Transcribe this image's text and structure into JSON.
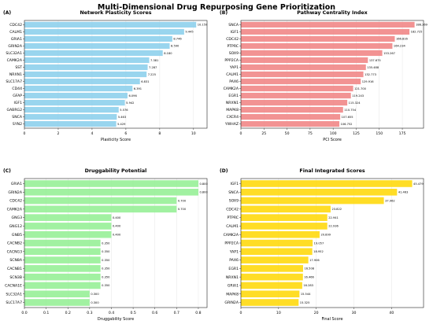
{
  "figure_title": "Multi-Dimensional Drug Repurposing Gene Prioritization",
  "chart_data": [
    {
      "type": "bar",
      "orientation": "horizontal",
      "letter": "(A)",
      "title": "Network Plasticity Scores",
      "xlabel": "Plasticity Score",
      "ylabel": "",
      "color": "#87CEEB",
      "xlim": [
        0,
        10.8
      ],
      "xticks": [
        0,
        2,
        4,
        6,
        8,
        10
      ],
      "categories": [
        "CDC42",
        "CALM1",
        "GRIA1",
        "GRIN2A",
        "SLC32A1",
        "CAMK2A",
        "SST",
        "NRXN1",
        "SLC17A7",
        "CD44",
        "GFAP",
        "IGF1",
        "GABRG2",
        "SNCA",
        "SYN2"
      ],
      "values": [
        10.159,
        9.445,
        8.746,
        8.59,
        8.18,
        7.381,
        7.287,
        7.225,
        6.831,
        6.391,
        6.096,
        5.942,
        5.576,
        5.463,
        5.429
      ],
      "value_labels": [
        "10.159",
        "9.445",
        "8.746",
        "8.590",
        "8.180",
        "7.381",
        "7.287",
        "7.225",
        "6.831",
        "6.391",
        "6.096",
        "5.942",
        "5.576",
        "5.463",
        "5.429"
      ],
      "grid": true
    },
    {
      "type": "bar",
      "orientation": "horizontal",
      "letter": "(B)",
      "title": "Pathway Centrality Index",
      "xlabel": "PCI Score",
      "ylabel": "",
      "color": "#F08080",
      "xlim": [
        0,
        198
      ],
      "xticks": [
        0,
        25,
        50,
        75,
        100,
        125,
        150,
        175
      ],
      "categories": [
        "SNCA",
        "IGF1",
        "CDC42",
        "PTPRC",
        "SOX9",
        "PPP2CA",
        "YAP1",
        "CALM1",
        "PAX6",
        "CAMK2A",
        "EGR1",
        "NRXN1",
        "MAPK8",
        "CXCR4",
        "YWHAZ"
      ],
      "values": [
        188.269,
        182.725,
        166.816,
        164.234,
        153.267,
        137.675,
        135.488,
        132.773,
        129.916,
        121.7,
        119.243,
        115.324,
        110.754,
        107.655,
        106.752
      ],
      "value_labels": [
        "188.269",
        "182.725",
        "166.816",
        "164.234",
        "153.267",
        "137.675",
        "135.488",
        "132.773",
        "129.916",
        "121.700",
        "119.243",
        "115.324",
        "110.754",
        "107.655",
        "106.752"
      ],
      "grid": true
    },
    {
      "type": "bar",
      "orientation": "horizontal",
      "letter": "(C)",
      "title": "Druggability Potential",
      "xlabel": "Druggability Score",
      "ylabel": "",
      "color": "#90EE90",
      "xlim": [
        0,
        0.84
      ],
      "xticks": [
        0.0,
        0.1,
        0.2,
        0.3,
        0.4,
        0.5,
        0.6,
        0.7,
        0.8
      ],
      "categories": [
        "GRIA1",
        "GRIN2A",
        "CDC42",
        "CAMK2A",
        "GNG3",
        "GNG12",
        "GNB5",
        "CACNB2",
        "CACNG3",
        "SCN8A",
        "CACNB1",
        "SCN3B",
        "CACNA1E",
        "SLC32A1",
        "SLC17A7"
      ],
      "values": [
        0.8,
        0.8,
        0.7,
        0.7,
        0.4,
        0.4,
        0.4,
        0.35,
        0.35,
        0.35,
        0.35,
        0.35,
        0.35,
        0.3,
        0.3
      ],
      "value_labels": [
        "0.800",
        "0.800",
        "0.700",
        "0.700",
        "0.400",
        "0.400",
        "0.400",
        "0.350",
        "0.350",
        "0.350",
        "0.350",
        "0.350",
        "0.350",
        "0.300",
        "0.300"
      ],
      "grid": true
    },
    {
      "type": "bar",
      "orientation": "horizontal",
      "letter": "(D)",
      "title": "Final Integrated Scores",
      "xlabel": "Final Score",
      "ylabel": "",
      "color": "#FFD700",
      "xlim": [
        0,
        48.5
      ],
      "xticks": [
        0,
        10,
        20,
        30,
        40
      ],
      "categories": [
        "IGF1",
        "SNCA",
        "SOX9",
        "CDC42",
        "PTPRC",
        "CALM1",
        "CAMK2A",
        "PPP2CA",
        "YAP1",
        "PAX6",
        "EGR1",
        "NRXN1",
        "GRIA1",
        "MAPK8",
        "GRIN2A"
      ],
      "values": [
        45.479,
        41.463,
        37.962,
        23.822,
        22.941,
        22.936,
        20.899,
        19.057,
        18.952,
        17.906,
        16.508,
        16.466,
        16.283,
        15.544,
        15.325
      ],
      "value_labels": [
        "45.479",
        "41.463",
        "37.962",
        "23.822",
        "22.941",
        "22.936",
        "20.899",
        "19.057",
        "18.952",
        "17.906",
        "16.508",
        "16.466",
        "16.283",
        "15.544",
        "15.325"
      ],
      "grid": true
    }
  ]
}
